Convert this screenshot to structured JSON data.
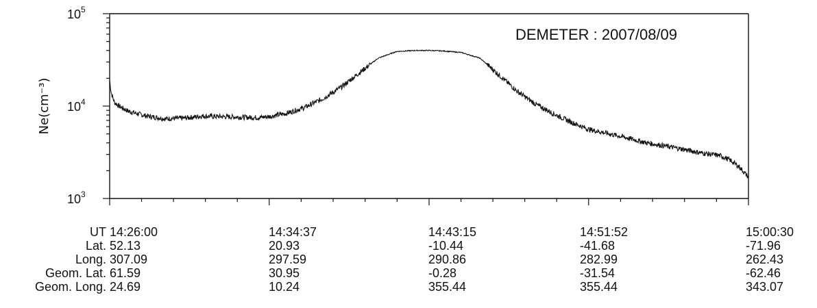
{
  "chart_data": {
    "type": "line",
    "title": "DEMETER : 2007/08/09",
    "ylabel": "Ne(cm⁻³)",
    "yscale": "log",
    "ylim": [
      1000,
      100000
    ],
    "yticks": [
      {
        "base": "10",
        "exp": "3"
      },
      {
        "base": "10",
        "exp": "4"
      },
      {
        "base": "10",
        "exp": "5"
      }
    ],
    "xlim": [
      "14:26:00",
      "15:00:30"
    ],
    "grid": false,
    "series": [
      {
        "x": [
          "14:26:00",
          "14:26:05",
          "14:26:15",
          "14:26:30",
          "14:27:00",
          "14:28:00",
          "14:29:00",
          "14:30:00",
          "14:31:00",
          "14:32:00",
          "14:33:00",
          "14:34:00",
          "14:34:37",
          "14:35:30",
          "14:36:30",
          "14:37:30",
          "14:38:30",
          "14:39:30",
          "14:40:30",
          "14:41:30",
          "14:42:30",
          "14:43:15",
          "14:44:00",
          "14:45:00",
          "14:46:00",
          "14:47:00",
          "14:48:00",
          "14:49:00",
          "14:50:00",
          "14:51:00",
          "14:51:52",
          "14:53:00",
          "14:54:00",
          "14:55:00",
          "14:56:00",
          "14:57:00",
          "14:58:00",
          "14:59:00",
          "14:59:30",
          "15:00:00",
          "15:00:30"
        ],
        "y": [
          19000,
          14000,
          11000,
          10000,
          8800,
          7800,
          7300,
          7400,
          7800,
          7700,
          7600,
          7500,
          7700,
          8300,
          9600,
          12000,
          16000,
          23000,
          33000,
          39000,
          40000,
          40000,
          39500,
          38000,
          33000,
          22000,
          14500,
          10500,
          8200,
          6600,
          5600,
          5000,
          4500,
          4000,
          3700,
          3400,
          3100,
          2900,
          2600,
          2200,
          1700
        ]
      }
    ]
  },
  "table": {
    "row_labels": [
      "UT",
      "Lat.",
      "Long.",
      "Geom. Lat.",
      "Geom. Long."
    ],
    "columns": [
      [
        "14:26:00",
        "52.13",
        "307.09",
        "61.59",
        "24.69"
      ],
      [
        "14:34:37",
        "20.93",
        "297.59",
        "30.95",
        "10.24"
      ],
      [
        "14:43:15",
        "-10.44",
        "290.86",
        "-0.28",
        "355.44"
      ],
      [
        "14:51:52",
        "-41.68",
        "282.99",
        "-31.54",
        "355.44"
      ],
      [
        "15:00:30",
        "-71.96",
        "262.43",
        "-62.46",
        "343.07"
      ]
    ]
  }
}
